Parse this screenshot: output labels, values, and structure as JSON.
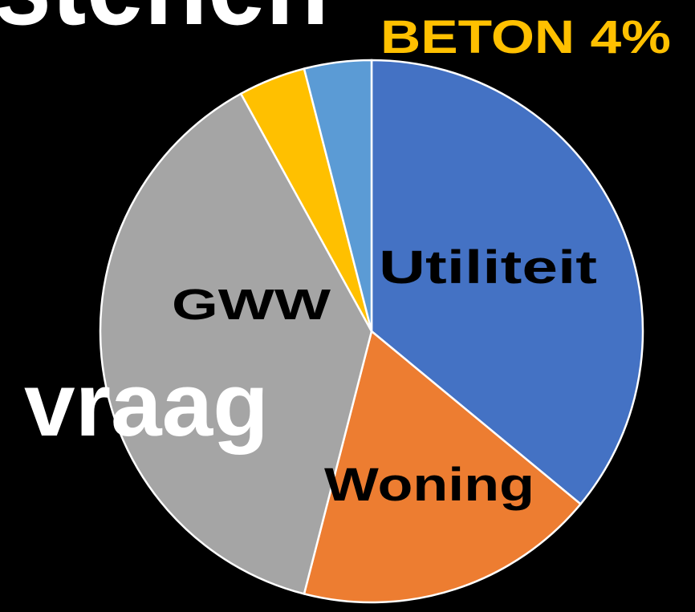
{
  "chart_data": {
    "type": "pie",
    "categories": [
      "Utiliteit",
      "Woning",
      "GWW",
      null,
      null
    ],
    "values": [
      36,
      18,
      38,
      4,
      4
    ],
    "value_labels": [
      null,
      null,
      null,
      "BETON  4%",
      null
    ],
    "colors": [
      "#4472c4",
      "#ed7d31",
      "#a5a5a5",
      "#ffc000",
      "#5b9bd5"
    ],
    "annotations": [
      "stenen",
      "vraag"
    ]
  }
}
